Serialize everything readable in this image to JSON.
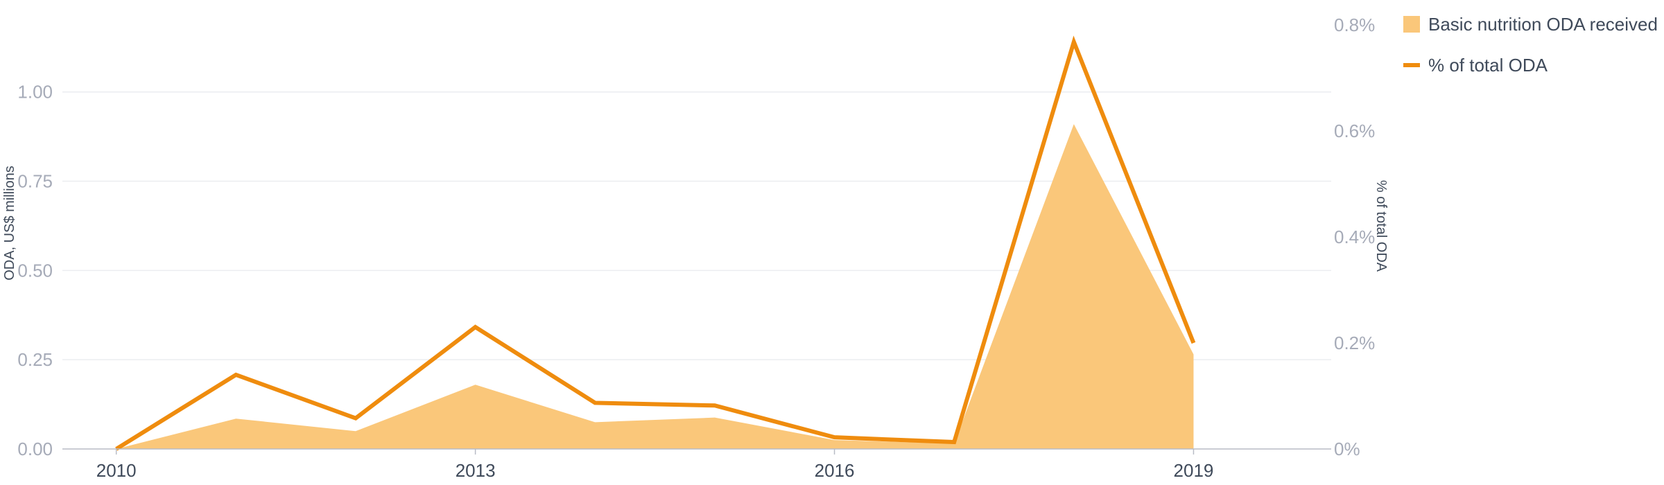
{
  "chart_data": {
    "type": "area",
    "x": [
      2010,
      2011,
      2012,
      2013,
      2014,
      2015,
      2016,
      2017,
      2018,
      2019
    ],
    "x_tick_labels": [
      "2010",
      "2013",
      "2016",
      "2019"
    ],
    "x_tick_values": [
      2010,
      2013,
      2016,
      2019
    ],
    "series": [
      {
        "name": "Basic nutrition ODA received",
        "kind": "area",
        "axis": "left",
        "color": "#fac77a",
        "values": [
          0.0,
          0.085,
          0.05,
          0.18,
          0.075,
          0.088,
          0.025,
          0.015,
          0.91,
          0.265
        ]
      },
      {
        "name": "% of total ODA",
        "kind": "line",
        "axis": "right",
        "color": "#ef8c0e",
        "values": [
          0.0,
          0.14,
          0.058,
          0.23,
          0.087,
          0.082,
          0.022,
          0.013,
          0.768,
          0.2
        ]
      }
    ],
    "y_left": {
      "label": "ODA, US$ millions",
      "ticks": [
        "0.00",
        "0.25",
        "0.50",
        "0.75",
        "1.00"
      ],
      "tick_values": [
        0,
        0.25,
        0.5,
        0.75,
        1.0
      ],
      "range": [
        0,
        1.18
      ]
    },
    "y_right": {
      "label": "% of total ODA",
      "ticks": [
        "0%",
        "0.2%",
        "0.4%",
        "0.6%",
        "0.8%"
      ],
      "tick_values": [
        0,
        0.2,
        0.4,
        0.6,
        0.8
      ],
      "range": [
        0,
        0.8
      ]
    },
    "grid": true,
    "legend_position": "top-right"
  }
}
